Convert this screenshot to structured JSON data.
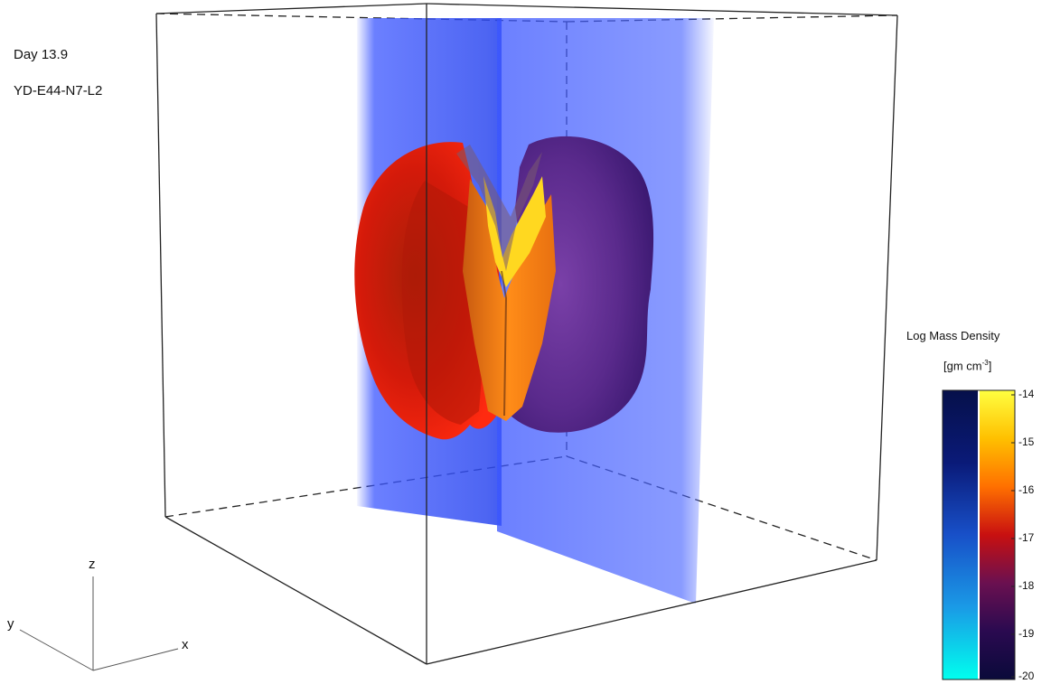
{
  "annotation": {
    "time_label": "Day 13.9",
    "model_label": "YD-E44-N7-L2"
  },
  "colorbar": {
    "title": "Log Mass Density",
    "units_prefix": "[gm cm",
    "units_exponent": "-3",
    "units_suffix": "]",
    "ticks": [
      "-14",
      "-15",
      "-16",
      "-17",
      "-18",
      "-19",
      "-20"
    ],
    "left_stops": [
      "#00ffee",
      "#1a9ae6",
      "#1850c8",
      "#0a1a78",
      "#06104a"
    ],
    "right_stops": [
      "#ffff40",
      "#ffc000",
      "#ff7000",
      "#c81010",
      "#6a1050",
      "#2a0a50",
      "#0a0a3a"
    ]
  },
  "axes_triad": {
    "x": "x",
    "y": "y",
    "z": "z"
  },
  "colors": {
    "slice_blue": "#3a55ff",
    "ejecta_red": "#d81a0a",
    "ejecta_orange": "#ff8a10",
    "ejecta_yellow": "#ffd820",
    "ejecta_purple": "#5a2a8c"
  }
}
